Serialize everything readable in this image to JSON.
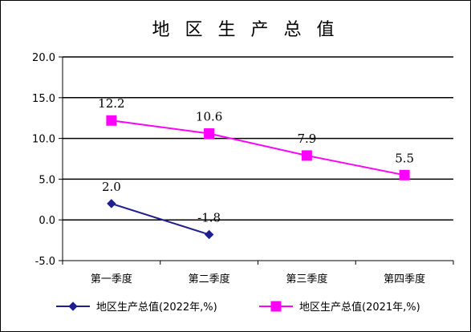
{
  "chart_data": {
    "type": "line",
    "title": "地 区 生 产 总 值",
    "categories": [
      "第一季度",
      "第二季度",
      "第三季度",
      "第四季度"
    ],
    "ylim": [
      -5.0,
      20.0
    ],
    "yticks": [
      "20.0",
      "15.0",
      "10.0",
      "5.0",
      "0.0",
      "-5.0"
    ],
    "ytick_values": [
      20,
      15,
      10,
      5,
      0,
      -5
    ],
    "grid": true,
    "legend_position": "bottom",
    "series": [
      {
        "name": "地区生产总值(2022年,%)",
        "values": [
          2.0,
          -1.8,
          null,
          null
        ],
        "labels": [
          "2.0",
          "-1.8",
          null,
          null
        ],
        "color": "#1F1F8F",
        "marker": "diamond"
      },
      {
        "name": "地区生产总值(2021年,%)",
        "values": [
          12.2,
          10.6,
          7.9,
          5.5
        ],
        "labels": [
          "12.2",
          "10.6",
          "7.9",
          "5.5"
        ],
        "color": "#FF00FF",
        "marker": "square"
      }
    ]
  }
}
